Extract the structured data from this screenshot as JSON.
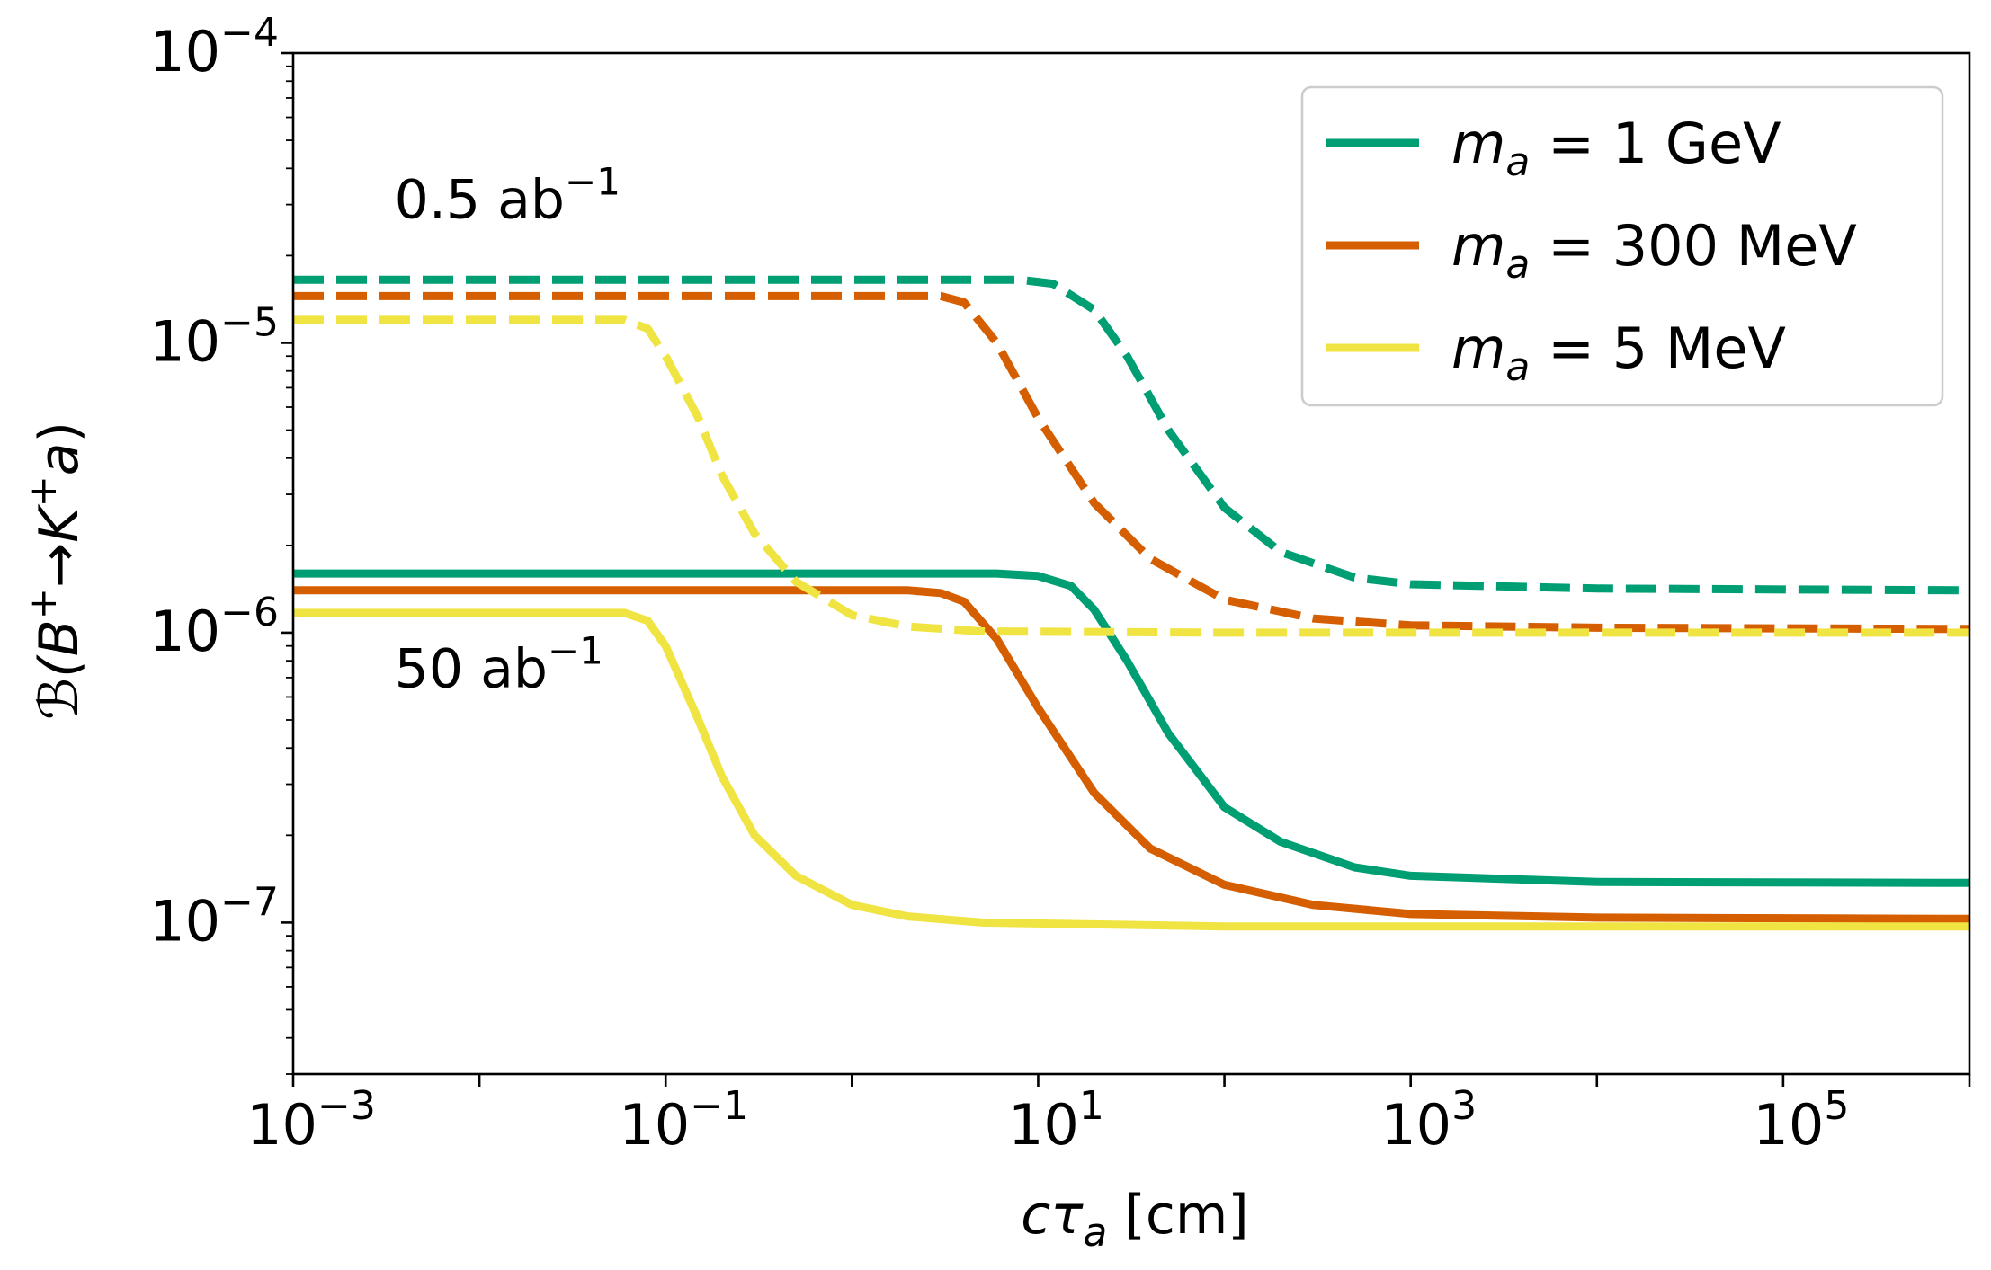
{
  "chart_data": {
    "type": "line",
    "xscale": "log",
    "yscale": "log",
    "xlim": [
      0.001,
      1000000
    ],
    "ylim": [
      3e-08,
      0.0001
    ],
    "xlabel": {
      "base": "cτ",
      "sub": "a",
      "unit": " [cm]"
    },
    "ylabel": {
      "pre": "ℬ(B",
      "sup1": "+",
      "arrow": "→",
      "k": "K",
      "sup2": "+",
      "a": "a",
      "post": ")"
    },
    "x_ticks": [
      {
        "base": "10",
        "exp": "−3"
      },
      {
        "base": "10",
        "exp": "−1"
      },
      {
        "base": "10",
        "exp": "1"
      },
      {
        "base": "10",
        "exp": "3"
      },
      {
        "base": "10",
        "exp": "5"
      }
    ],
    "x_tick_values": [
      0.001,
      0.1,
      10,
      1000,
      100000
    ],
    "y_ticks": [
      {
        "base": "10",
        "exp": "−7"
      },
      {
        "base": "10",
        "exp": "−6"
      },
      {
        "base": "10",
        "exp": "−5"
      },
      {
        "base": "10",
        "exp": "−4"
      }
    ],
    "y_tick_values": [
      1e-07,
      1e-06,
      1e-05,
      0.0001
    ],
    "legend_position": "top-right",
    "annotations": [
      {
        "id": "lumi-low",
        "text": "0.5 ab",
        "sup": "−1",
        "x": 0.0035,
        "y": 2.7e-05
      },
      {
        "id": "lumi-high",
        "text": "50 ab",
        "sup": "−1",
        "x": 0.0035,
        "y": 6.5e-07
      }
    ],
    "series": [
      {
        "id": "ma-1gev-50",
        "name": "m_a = 1 GeV",
        "color": "#009E73",
        "dash": "solid",
        "legend": true,
        "x": [
          0.001,
          6,
          10,
          15,
          20,
          30,
          50,
          100,
          200,
          500,
          1000,
          10000,
          1000000
        ],
        "y": [
          1.6e-06,
          1.6e-06,
          1.57e-06,
          1.45e-06,
          1.2e-06,
          8e-07,
          4.5e-07,
          2.5e-07,
          1.9e-07,
          1.55e-07,
          1.45e-07,
          1.38e-07,
          1.37e-07
        ]
      },
      {
        "id": "ma-300mev-50",
        "name": "m_a = 300 MeV",
        "color": "#D55E00",
        "dash": "solid",
        "legend": true,
        "x": [
          0.001,
          2,
          3,
          4,
          6,
          10,
          20,
          40,
          100,
          300,
          1000,
          10000,
          1000000
        ],
        "y": [
          1.4e-06,
          1.4e-06,
          1.37e-06,
          1.28e-06,
          9.5e-07,
          5.5e-07,
          2.8e-07,
          1.8e-07,
          1.35e-07,
          1.15e-07,
          1.07e-07,
          1.04e-07,
          1.03e-07
        ]
      },
      {
        "id": "ma-5mev-50",
        "name": "m_a = 5 MeV",
        "color": "#F0E442",
        "dash": "solid",
        "legend": true,
        "x": [
          0.001,
          0.06,
          0.08,
          0.1,
          0.15,
          0.2,
          0.3,
          0.5,
          1,
          2,
          5,
          100,
          1000000
        ],
        "y": [
          1.17e-06,
          1.17e-06,
          1.1e-06,
          9e-07,
          5e-07,
          3.2e-07,
          2e-07,
          1.45e-07,
          1.15e-07,
          1.05e-07,
          1e-07,
          9.7e-08,
          9.7e-08
        ]
      },
      {
        "id": "ma-1gev-05",
        "name": "",
        "color": "#009E73",
        "dash": "dashed",
        "legend": false,
        "x": [
          0.001,
          8,
          12,
          20,
          30,
          50,
          100,
          200,
          500,
          1000,
          10000,
          1000000
        ],
        "y": [
          1.65e-05,
          1.65e-05,
          1.6e-05,
          1.3e-05,
          9e-06,
          5e-06,
          2.7e-06,
          1.9e-06,
          1.55e-06,
          1.47e-06,
          1.42e-06,
          1.4e-06
        ]
      },
      {
        "id": "ma-300mev-05",
        "name": "",
        "color": "#D55E00",
        "dash": "dashed",
        "legend": false,
        "x": [
          0.001,
          3,
          4,
          6,
          10,
          20,
          40,
          100,
          300,
          1000,
          10000,
          1000000
        ],
        "y": [
          1.45e-05,
          1.45e-05,
          1.38e-05,
          1e-05,
          5.5e-06,
          2.8e-06,
          1.8e-06,
          1.3e-06,
          1.12e-06,
          1.06e-06,
          1.04e-06,
          1.03e-06
        ]
      },
      {
        "id": "ma-5mev-05",
        "name": "",
        "color": "#F0E442",
        "dash": "dashed",
        "legend": false,
        "x": [
          0.001,
          0.06,
          0.08,
          0.1,
          0.15,
          0.2,
          0.3,
          0.5,
          1,
          2,
          5,
          100,
          1000000
        ],
        "y": [
          1.2e-05,
          1.2e-05,
          1.12e-05,
          9e-06,
          5.5e-06,
          3.5e-06,
          2.2e-06,
          1.5e-06,
          1.15e-06,
          1.05e-06,
          1.01e-06,
          1e-06,
          1e-06
        ]
      }
    ],
    "legend": [
      {
        "label_sym": "m",
        "label_sub": "a",
        "label_rest": " = 1 GeV",
        "color": "#009E73"
      },
      {
        "label_sym": "m",
        "label_sub": "a",
        "label_rest": " = 300 MeV",
        "color": "#D55E00"
      },
      {
        "label_sym": "m",
        "label_sub": "a",
        "label_rest": " = 5 MeV",
        "color": "#F0E442"
      }
    ]
  }
}
